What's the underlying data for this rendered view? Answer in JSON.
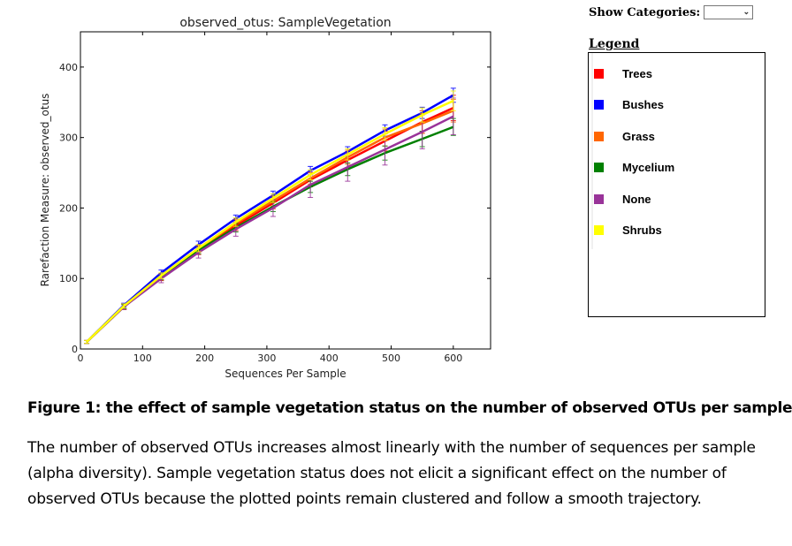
{
  "controls": {
    "show_categories_label": "Show Categories:",
    "show_categories_value": ""
  },
  "legend": {
    "title": "Legend",
    "items": [
      {
        "label": "Trees",
        "color": "#ff0000"
      },
      {
        "label": "Bushes",
        "color": "#0000ff"
      },
      {
        "label": "Grass",
        "color": "#ff6600"
      },
      {
        "label": "Mycelium",
        "color": "#008000"
      },
      {
        "label": "None",
        "color": "#993399"
      },
      {
        "label": "Shrubs",
        "color": "#ffff00"
      }
    ]
  },
  "caption": {
    "title": "Figure 1: the effect of sample vegetation status on the number of observed OTUs per sample",
    "body": "The number of observed OTUs increases almost linearly with the number of sequences per sample (alpha diversity). Sample vegetation status does not elicit a significant effect on the number of observed OTUs because the plotted points remain clustered and follow a smooth trajectory."
  },
  "chart_data": {
    "type": "line",
    "title": "observed_otus: SampleVegetation",
    "xlabel": "Sequences Per Sample",
    "ylabel": "Rarefaction Measure: observed_otus",
    "xlim": [
      0,
      660
    ],
    "ylim": [
      0,
      450
    ],
    "xticks": [
      0,
      100,
      200,
      300,
      400,
      500,
      600
    ],
    "yticks": [
      0,
      100,
      200,
      300,
      400
    ],
    "grid": false,
    "legend_position": "outside-right",
    "x": [
      10,
      70,
      130,
      190,
      250,
      310,
      370,
      430,
      490,
      550,
      600
    ],
    "series": [
      {
        "name": "Trees",
        "color": "#ff0000",
        "values": [
          10,
          60,
          102,
          140,
          175,
          207,
          240,
          268,
          295,
          322,
          342
        ],
        "errors": [
          2,
          4,
          5,
          6,
          7,
          8,
          10,
          12,
          14,
          16,
          18
        ]
      },
      {
        "name": "Bushes",
        "color": "#0000ff",
        "values": [
          10,
          62,
          108,
          148,
          185,
          218,
          253,
          280,
          310,
          335,
          360
        ],
        "errors": [
          2,
          3,
          4,
          5,
          5,
          6,
          6,
          7,
          8,
          8,
          10
        ]
      },
      {
        "name": "Grass",
        "color": "#ff6600",
        "values": [
          10,
          60,
          102,
          142,
          178,
          210,
          242,
          272,
          300,
          320,
          338
        ],
        "errors": [
          2,
          3,
          4,
          5,
          6,
          7,
          8,
          10,
          12,
          14,
          16
        ]
      },
      {
        "name": "Mycelium",
        "color": "#008000",
        "values": [
          10,
          60,
          102,
          140,
          172,
          202,
          230,
          255,
          278,
          298,
          315
        ],
        "errors": [
          2,
          3,
          4,
          5,
          6,
          7,
          8,
          9,
          10,
          11,
          12
        ]
      },
      {
        "name": "None",
        "color": "#993399",
        "values": [
          10,
          60,
          100,
          137,
          170,
          200,
          233,
          258,
          283,
          308,
          330
        ],
        "errors": [
          2,
          4,
          6,
          8,
          10,
          12,
          18,
          20,
          22,
          24,
          26
        ]
      },
      {
        "name": "Shrubs",
        "color": "#ffff00",
        "values": [
          10,
          61,
          104,
          143,
          180,
          214,
          247,
          276,
          305,
          332,
          352
        ],
        "errors": [
          2,
          3,
          4,
          5,
          6,
          6,
          7,
          8,
          9,
          10,
          14
        ]
      }
    ]
  }
}
